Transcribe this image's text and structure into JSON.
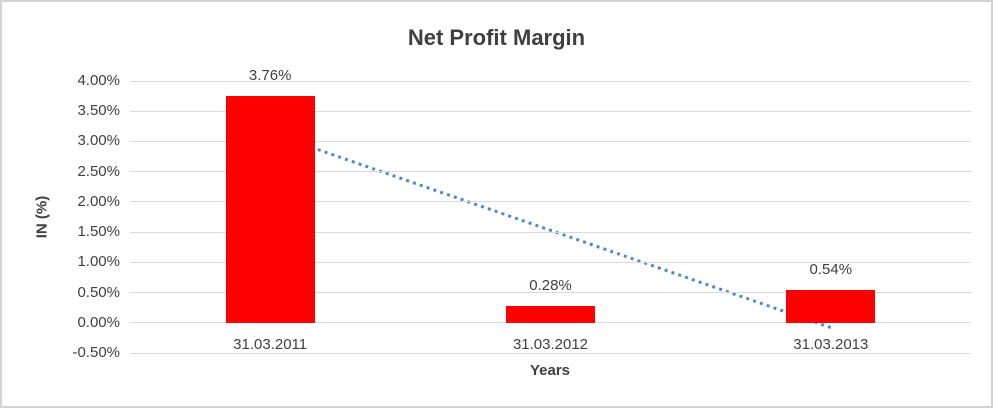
{
  "chart_data": {
    "type": "bar",
    "title": "Net Profit Margin",
    "xlabel": "Years",
    "ylabel": "IN (%)",
    "categories": [
      "31.03.2011",
      "31.03.2012",
      "31.03.2013"
    ],
    "values": [
      3.76,
      0.28,
      0.54
    ],
    "data_labels": [
      "3.76%",
      "0.28%",
      "0.54%"
    ],
    "ylim": [
      -0.5,
      4.0
    ],
    "ytick_step": 0.5,
    "ytick_labels": [
      "4.00%",
      "3.50%",
      "3.00%",
      "2.50%",
      "2.00%",
      "1.50%",
      "1.00%",
      "0.50%",
      "0.00%",
      "-0.50%"
    ],
    "grid": true,
    "legend": "none",
    "colors": {
      "bar": "#FF0000",
      "gridline": "#D9D9D9",
      "text": "#404040",
      "title": "#3F3F3F",
      "trendline": "#4E8AC9",
      "border": "#D2D2D2",
      "background": "#FFFFFF"
    },
    "trendline": {
      "type": "linear",
      "style": "dotted",
      "start_value": 3.14,
      "end_value": -0.08
    }
  }
}
